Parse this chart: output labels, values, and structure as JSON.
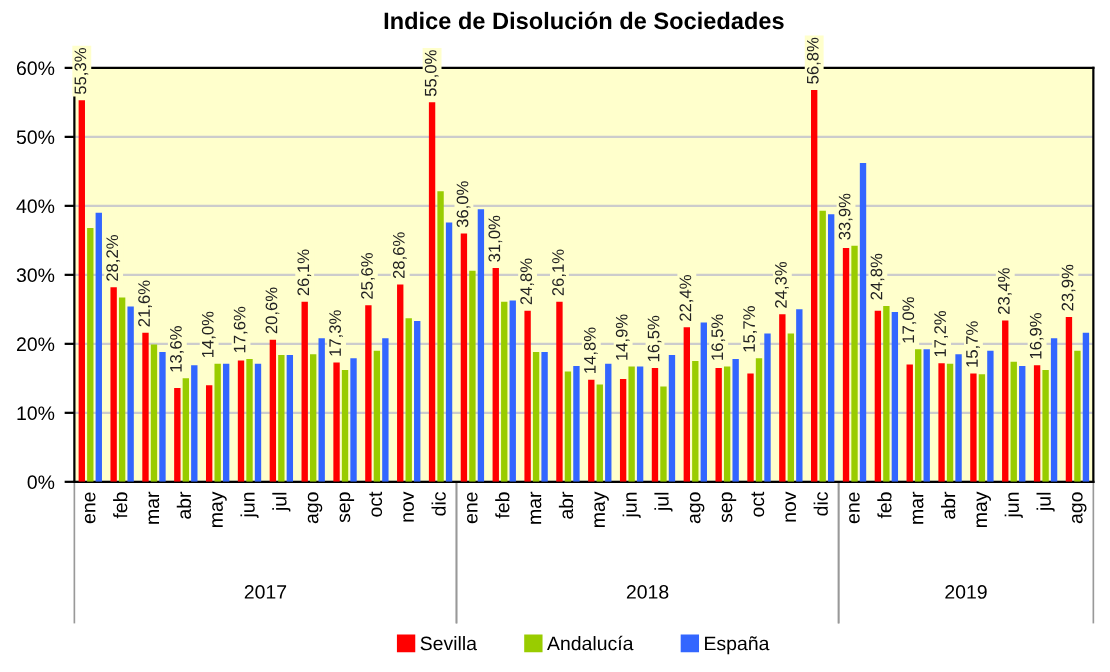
{
  "chart_data": {
    "type": "bar",
    "title": "Indice de Disolución de Sociedades",
    "categories": [
      "ene",
      "feb",
      "mar",
      "abr",
      "may",
      "jun",
      "jul",
      "ago",
      "sep",
      "oct",
      "nov",
      "dic",
      "ene",
      "feb",
      "mar",
      "abr",
      "may",
      "jun",
      "jul",
      "ago",
      "sep",
      "oct",
      "nov",
      "dic",
      "ene",
      "feb",
      "mar",
      "abr",
      "may",
      "jun",
      "jul",
      "ago"
    ],
    "series": [
      {
        "name": "Sevilla",
        "color": "#ff0000",
        "values": [
          55.3,
          28.2,
          21.6,
          13.6,
          14.0,
          17.6,
          20.6,
          26.1,
          17.3,
          25.6,
          28.6,
          55.0,
          36.0,
          31.0,
          24.8,
          26.1,
          14.8,
          14.9,
          16.5,
          22.4,
          16.5,
          15.7,
          24.3,
          56.8,
          33.9,
          24.8,
          17.0,
          17.2,
          15.7,
          23.4,
          16.9,
          23.9
        ],
        "value_labels": [
          "55,3%",
          "28,2%",
          "21,6%",
          "13,6%",
          "14,0%",
          "17,6%",
          "20,6%",
          "26,1%",
          "17,3%",
          "25,6%",
          "28,6%",
          "55,0%",
          "36,0%",
          "31,0%",
          "24,8%",
          "26,1%",
          "14,8%",
          "14,9%",
          "16,5%",
          "22,4%",
          "16,5%",
          "15,7%",
          "24,3%",
          "56,8%",
          "33,9%",
          "24,8%",
          "17,0%",
          "17,2%",
          "15,7%",
          "23,4%",
          "16,9%",
          "23,9%"
        ]
      },
      {
        "name": "Andalucía",
        "color": "#99cc00",
        "values": [
          36.8,
          26.7,
          19.9,
          15.0,
          17.1,
          17.8,
          18.4,
          18.5,
          16.2,
          19.0,
          23.7,
          42.1,
          30.6,
          26.1,
          18.8,
          16.0,
          14.1,
          16.7,
          13.8,
          17.5,
          16.7,
          17.9,
          21.5,
          39.3,
          34.2,
          25.5,
          19.2,
          17.1,
          15.6,
          17.4,
          16.2,
          19.0
        ]
      },
      {
        "name": "España",
        "color": "#3366ff",
        "values": [
          39.0,
          25.4,
          18.8,
          16.9,
          17.1,
          17.1,
          18.4,
          20.8,
          17.9,
          20.8,
          23.3,
          37.6,
          39.5,
          26.3,
          18.8,
          16.8,
          17.1,
          16.7,
          18.4,
          23.1,
          17.8,
          21.5,
          25.0,
          38.8,
          46.2,
          24.6,
          19.2,
          18.5,
          19.0,
          16.8,
          20.8,
          21.6
        ]
      }
    ],
    "ylim": [
      0,
      60
    ],
    "yticks": [
      {
        "value": 0,
        "label": "0%"
      },
      {
        "value": 10,
        "label": "10%"
      },
      {
        "value": 20,
        "label": "20%"
      },
      {
        "value": 30,
        "label": "30%"
      },
      {
        "value": 40,
        "label": "40%"
      },
      {
        "value": 50,
        "label": "50%"
      },
      {
        "value": 60,
        "label": "60%"
      }
    ],
    "grid": "y",
    "legend": "bottom",
    "annotations": [
      "2017",
      "2018",
      "2019"
    ]
  }
}
